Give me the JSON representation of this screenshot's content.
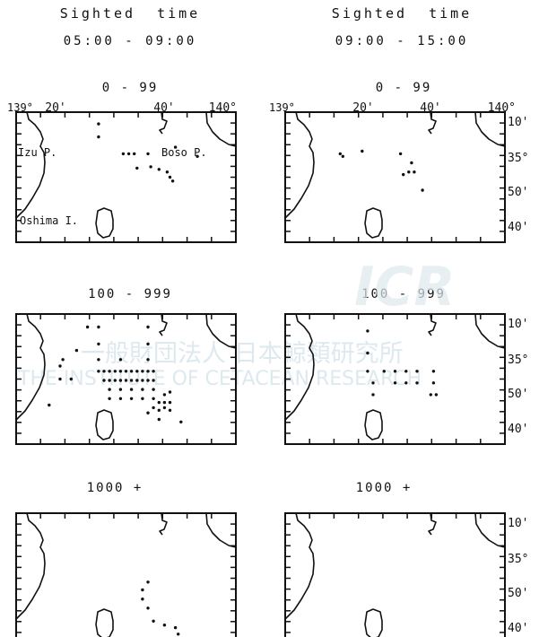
{
  "columns": [
    {
      "heading": "Sighted  time",
      "time_range": "05:00 - 09:00"
    },
    {
      "heading": "Sighted  time",
      "time_range": "09:00 - 15:00"
    }
  ],
  "group_labels": [
    "0 - 99",
    "100 - 999",
    "1000 +"
  ],
  "longitude_labels": {
    "left": "139°",
    "mid1": "20'",
    "mid2": "40'",
    "right": "140°"
  },
  "latitude_labels": [
    "10'",
    "35°",
    "50'",
    "40'"
  ],
  "place_names": {
    "izu": "Izu P.",
    "boso": "Boso P.",
    "oshima": "Oshima I."
  },
  "watermark": {
    "logo": "ICR",
    "japanese": "一般財団法人 日本鯨類研究所",
    "english": "THE INSTITUTE OF CETACEAN RESEARCH"
  },
  "colors": {
    "ink": "#111111",
    "watermark": "#dde9ee"
  },
  "sightings": [
    [
      [
        [
          15,
          0.9
        ],
        [
          15,
          1.9
        ],
        [
          19.5,
          3.2
        ],
        [
          20.5,
          3.2
        ],
        [
          21.5,
          3.2
        ],
        [
          24,
          3.2
        ],
        [
          29,
          2.7
        ],
        [
          33,
          3.4
        ],
        [
          22,
          4.3
        ],
        [
          24.5,
          4.2
        ],
        [
          26,
          4.4
        ],
        [
          27.5,
          4.6
        ],
        [
          28,
          5.0
        ],
        [
          28.5,
          5.3
        ]
      ],
      [
        [
          8,
          4.0
        ],
        [
          8,
          5.0
        ],
        [
          10,
          5.0
        ],
        [
          8.5,
          3.5
        ],
        [
          11,
          2.8
        ],
        [
          13,
          1.0
        ],
        [
          15,
          1.0
        ],
        [
          24,
          1.0
        ],
        [
          15,
          2.3
        ],
        [
          24,
          2.3
        ],
        [
          15,
          3.5
        ],
        [
          19,
          3.5
        ],
        [
          24,
          3.5
        ],
        [
          15,
          4.4
        ],
        [
          16,
          4.4
        ],
        [
          17,
          4.4
        ],
        [
          18,
          4.4
        ],
        [
          19,
          4.4
        ],
        [
          20,
          4.4
        ],
        [
          21,
          4.4
        ],
        [
          22,
          4.4
        ],
        [
          23,
          4.4
        ],
        [
          24,
          4.4
        ],
        [
          25,
          4.4
        ],
        [
          16,
          5.1
        ],
        [
          17,
          5.1
        ],
        [
          18,
          5.1
        ],
        [
          19,
          5.1
        ],
        [
          20,
          5.1
        ],
        [
          21,
          5.1
        ],
        [
          22,
          5.1
        ],
        [
          23,
          5.1
        ],
        [
          24,
          5.1
        ],
        [
          25,
          5.1
        ],
        [
          17,
          5.8
        ],
        [
          19,
          5.8
        ],
        [
          21,
          5.8
        ],
        [
          23,
          5.8
        ],
        [
          25,
          5.8
        ],
        [
          17,
          6.5
        ],
        [
          19,
          6.5
        ],
        [
          21,
          6.5
        ],
        [
          23,
          6.5
        ],
        [
          25,
          6.5
        ],
        [
          27,
          6.2
        ],
        [
          28,
          6.0
        ],
        [
          26,
          6.8
        ],
        [
          27,
          6.8
        ],
        [
          28,
          6.8
        ],
        [
          25,
          7.2
        ],
        [
          26,
          7.4
        ],
        [
          27,
          7.2
        ],
        [
          28,
          7.4
        ],
        [
          24,
          7.6
        ],
        [
          6,
          7.0
        ],
        [
          26,
          8.1
        ],
        [
          30,
          8.3
        ]
      ],
      [
        [
          24,
          5.3
        ],
        [
          23,
          5.9
        ],
        [
          23,
          6.6
        ],
        [
          24,
          7.3
        ],
        [
          25,
          8.3
        ],
        [
          27,
          8.6
        ],
        [
          29,
          8.8
        ],
        [
          29.5,
          9.3
        ]
      ]
    ],
    [
      [
        [
          10,
          3.2
        ],
        [
          10.5,
          3.4
        ],
        [
          14,
          3.0
        ],
        [
          21,
          3.2
        ],
        [
          23,
          3.9
        ],
        [
          22.5,
          4.6
        ],
        [
          23.5,
          4.6
        ],
        [
          21.5,
          4.8
        ],
        [
          25,
          6.0
        ]
      ],
      [
        [
          15,
          1.3
        ],
        [
          15,
          3.0
        ],
        [
          15,
          4.4
        ],
        [
          18,
          4.4
        ],
        [
          20,
          4.4
        ],
        [
          22,
          4.4
        ],
        [
          24,
          4.4
        ],
        [
          16,
          5.3
        ],
        [
          20,
          5.3
        ],
        [
          22,
          5.3
        ],
        [
          24,
          5.3
        ],
        [
          27,
          4.4
        ],
        [
          27,
          5.3
        ],
        [
          26.5,
          6.2
        ],
        [
          27.5,
          6.2
        ],
        [
          16,
          6.2
        ]
      ],
      []
    ]
  ]
}
